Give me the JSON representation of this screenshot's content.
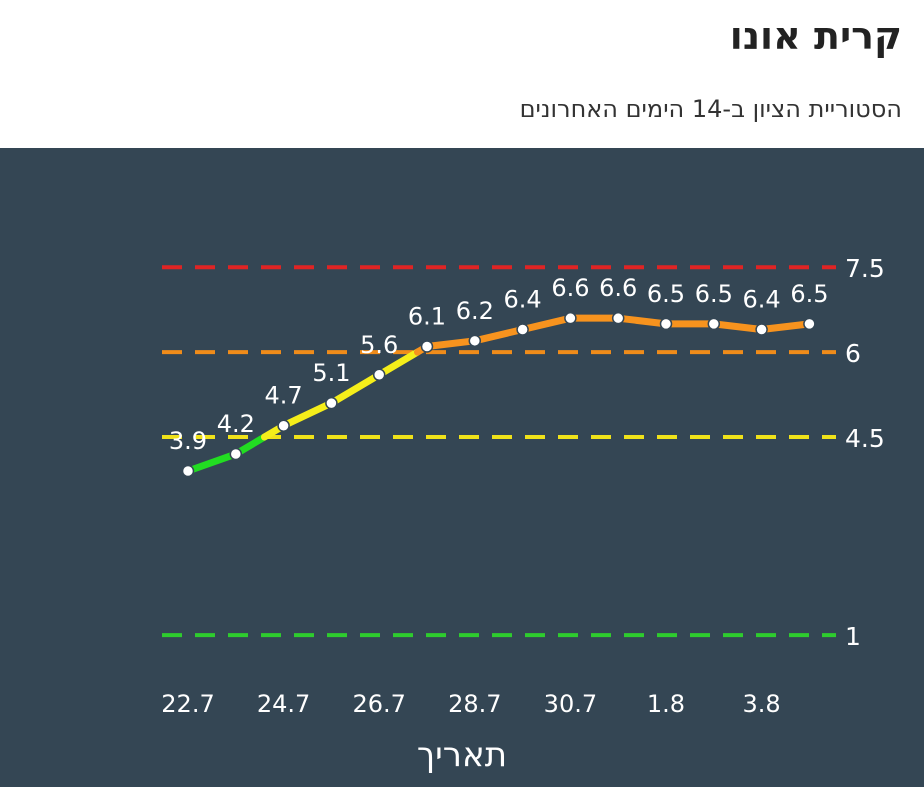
{
  "header": {
    "title": "קרית אונו",
    "subtitle": "הסטוריית הציון ב-14 הימים האחרונים"
  },
  "chart_data": {
    "type": "line",
    "title": "קרית אונו",
    "subtitle": "הסטוריית הציון ב-14 הימים האחרונים",
    "xlabel": "תאריך",
    "ylabel": "",
    "x_tick_labels": [
      "22.7",
      "24.7",
      "26.7",
      "28.7",
      "30.7",
      "1.8",
      "3.8"
    ],
    "series": [
      {
        "values": [
          3.9,
          4.2,
          4.7,
          5.1,
          5.6,
          6.1,
          6.2,
          6.4,
          6.6,
          6.6,
          6.5,
          6.5,
          6.4,
          6.5
        ]
      }
    ],
    "thresholds": [
      {
        "value": 7.5,
        "label": "7.5",
        "color": "#e02424"
      },
      {
        "value": 6,
        "label": "6",
        "color": "#f08c1a"
      },
      {
        "value": 4.5,
        "label": "4.5",
        "color": "#f0e21a"
      },
      {
        "value": 1,
        "label": "1",
        "color": "#2ecc2e"
      }
    ],
    "segment_colors": {
      "green": "#22dd22",
      "yellow": "#f5ee1a",
      "orange": "#f7931e"
    },
    "background": "#344654",
    "grid": false
  }
}
